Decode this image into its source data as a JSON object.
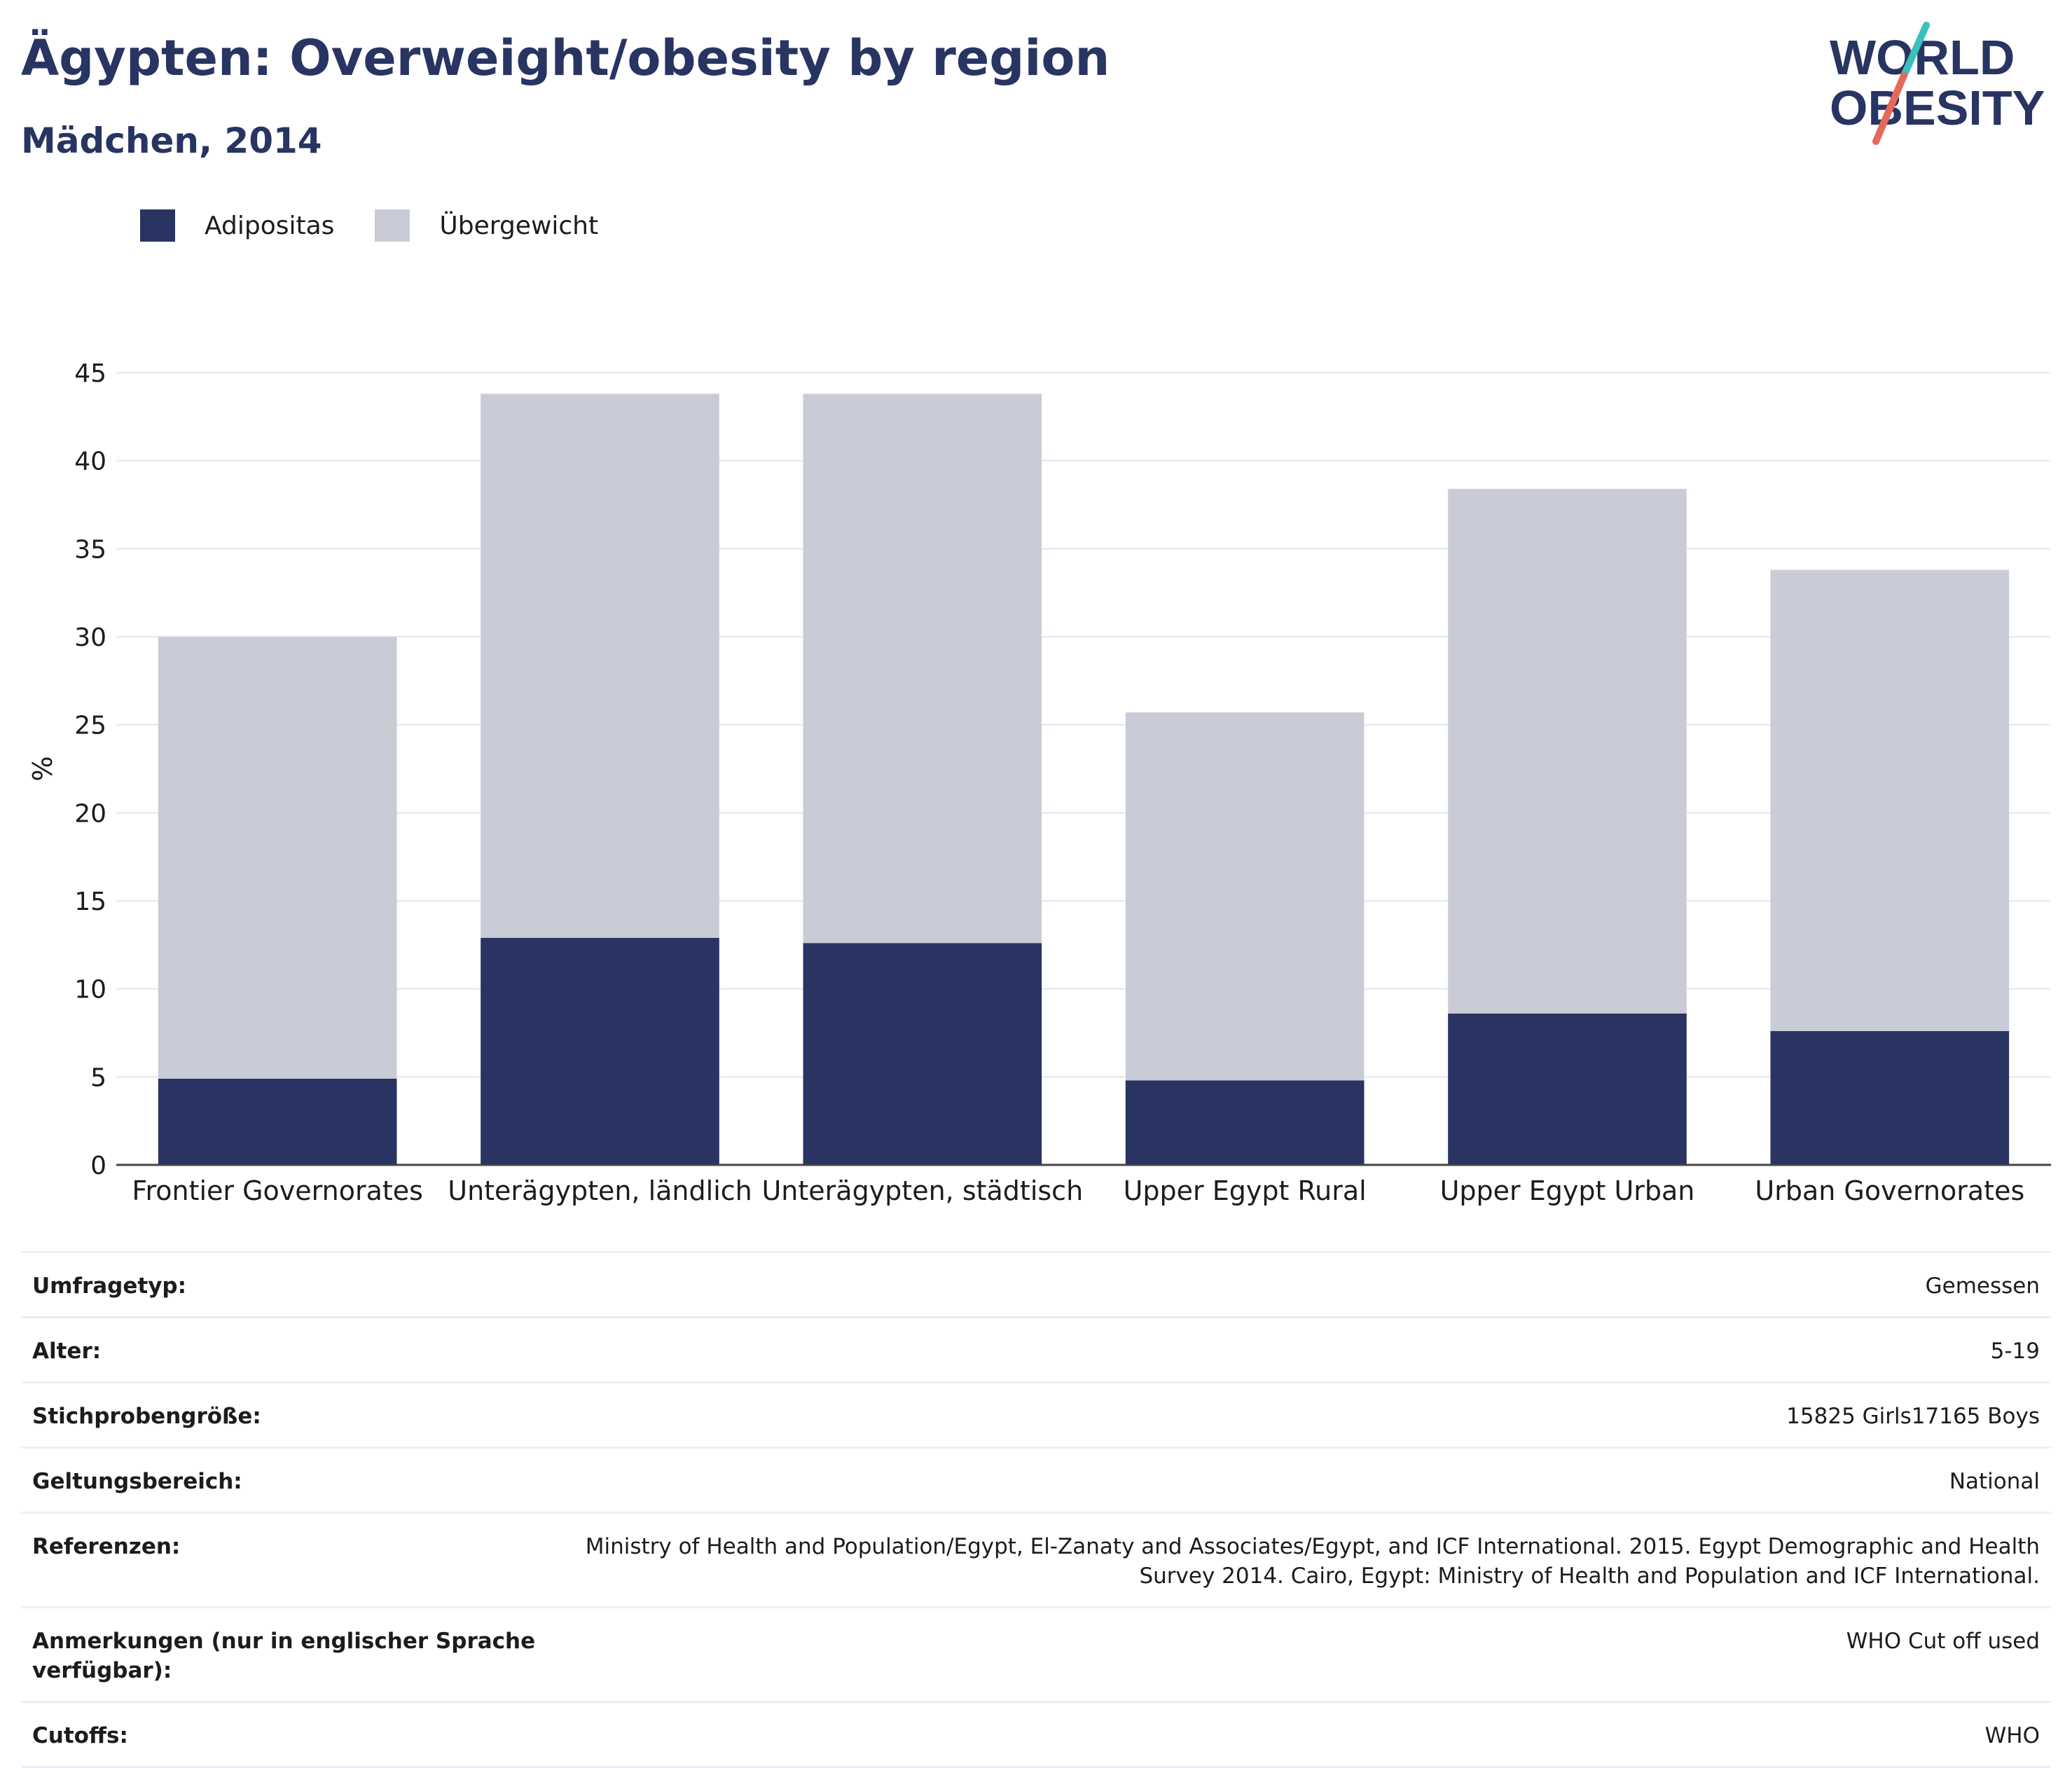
{
  "header": {
    "title": "Ägypten: Overweight/obesity by region",
    "subtitle": "Mädchen, 2014"
  },
  "logo": {
    "line1": "WORLD",
    "line2": "OBESITY",
    "colors": {
      "text": "#283462",
      "slash_top": "#3bbfbf",
      "slash_bottom": "#e5685a"
    }
  },
  "legend": [
    {
      "label": "Adipositas",
      "color": "#293462"
    },
    {
      "label": "Übergewicht",
      "color": "#c9cbd7"
    }
  ],
  "chart_data": {
    "type": "bar",
    "stacked": true,
    "categories": [
      "Frontier Governorates",
      "Unterägypten, ländlich",
      "Unterägypten, städtisch",
      "Upper Egypt Rural",
      "Upper Egypt Urban",
      "Urban Governorates"
    ],
    "series": [
      {
        "name": "Adipositas",
        "color": "#293462",
        "values": [
          4.9,
          12.9,
          12.6,
          4.8,
          8.6,
          7.6
        ]
      },
      {
        "name": "Übergewicht",
        "color": "#c9cbd7",
        "values": [
          25.1,
          30.9,
          31.2,
          20.9,
          29.8,
          26.2
        ]
      }
    ],
    "totals": [
      30.0,
      43.8,
      43.8,
      25.7,
      38.4,
      33.8
    ],
    "ylabel": "%",
    "ylim": [
      0,
      45
    ],
    "yticks": [
      0,
      5,
      10,
      15,
      20,
      25,
      30,
      35,
      40,
      45
    ],
    "grid": true,
    "legend_position": "top-left"
  },
  "metadata": [
    {
      "key": "Umfragetyp:",
      "value": "Gemessen"
    },
    {
      "key": "Alter:",
      "value": "5-19"
    },
    {
      "key": "Stichprobengröße:",
      "value": "15825 Girls17165 Boys"
    },
    {
      "key": "Geltungsbereich:",
      "value": "National"
    },
    {
      "key": "Referenzen:",
      "value": "Ministry of Health and Population/Egypt, El-Zanaty and Associates/Egypt, and ICF International. 2015. Egypt Demographic and Health Survey 2014. Cairo, Egypt: Ministry of Health and Population and ICF International."
    },
    {
      "key": "Anmerkungen (nur in englischer Sprache verfügbar):",
      "value": "WHO Cut off used"
    },
    {
      "key": "Cutoffs:",
      "value": "WHO"
    }
  ]
}
